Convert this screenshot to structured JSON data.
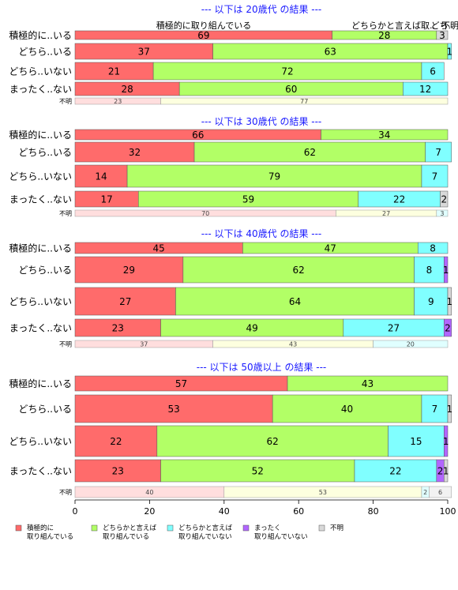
{
  "chart_data": {
    "type": "bar",
    "orientation": "horizontal",
    "stacked": true,
    "xlim": [
      0,
      100
    ],
    "x_ticks": [
      "0",
      "20",
      "40",
      "60",
      "80",
      "100"
    ],
    "categories": [
      "積極的に..いる",
      "どちら..いる",
      "どちら..いない",
      "まったく..ない",
      "不明"
    ],
    "legend": {
      "placement": "bottom",
      "items": [
        {
          "label": "積極的に\n取り組んでいる",
          "color": "#ff6b6b"
        },
        {
          "label": "どちらかと言えば\n取り組んでいる",
          "color": "#b2ff66"
        },
        {
          "label": "どちらかと言えば\n取り組んでいない",
          "color": "#80ffff"
        },
        {
          "label": "まったく\n取り組んでいない",
          "color": "#b266ff"
        },
        {
          "label": "不明",
          "color": "#d9d9d9"
        }
      ]
    },
    "faded_colors": [
      "#ffdede",
      "#fdffdf",
      "#e0ffff",
      "#efe0ff",
      "#f2f2f2"
    ],
    "top_header_labels": [
      "積極的に取り組んでいる",
      "どちらかと言えば取..",
      "どち..",
      "不明"
    ],
    "panels": [
      {
        "title": "--- 以下は 20歳代 の結果 ---",
        "rows": [
          {
            "category": "積極的に..いる",
            "values": [
              69,
              28,
              0,
              0,
              3
            ]
          },
          {
            "category": "どちら..いる",
            "values": [
              37,
              63,
              1,
              0,
              0
            ]
          },
          {
            "category": "どちら..いない",
            "values": [
              21,
              72,
              6,
              0,
              0
            ]
          },
          {
            "category": "まったく..ない",
            "values": [
              28,
              60,
              12,
              0,
              0
            ]
          },
          {
            "category": "不明",
            "values": [
              23,
              77,
              0,
              0,
              0
            ]
          }
        ]
      },
      {
        "title": "--- 以下は 30歳代 の結果 ---",
        "rows": [
          {
            "category": "積極的に..いる",
            "values": [
              66,
              34,
              0,
              0,
              0
            ]
          },
          {
            "category": "どちら..いる",
            "values": [
              32,
              62,
              7,
              0,
              0
            ]
          },
          {
            "category": "どちら..いない",
            "values": [
              14,
              79,
              7,
              0,
              0
            ]
          },
          {
            "category": "まったく..ない",
            "values": [
              17,
              59,
              22,
              0,
              2
            ]
          },
          {
            "category": "不明",
            "values": [
              70,
              27,
              3,
              0,
              0
            ]
          }
        ]
      },
      {
        "title": "--- 以下は 40歳代 の結果 ---",
        "rows": [
          {
            "category": "積極的に..いる",
            "values": [
              45,
              47,
              8,
              0,
              0
            ]
          },
          {
            "category": "どちら..いる",
            "values": [
              29,
              62,
              8,
              1,
              0
            ]
          },
          {
            "category": "どちら..いない",
            "values": [
              27,
              64,
              9,
              0,
              1
            ]
          },
          {
            "category": "まったく..ない",
            "values": [
              23,
              49,
              27,
              2,
              0
            ]
          },
          {
            "category": "不明",
            "values": [
              37,
              43,
              20,
              0,
              0
            ]
          }
        ]
      },
      {
        "title": "--- 以下は 50歳以上 の結果 ---",
        "rows": [
          {
            "category": "積極的に..いる",
            "values": [
              57,
              43,
              0,
              0,
              0
            ]
          },
          {
            "category": "どちら..いる",
            "values": [
              53,
              40,
              7,
              0,
              1
            ]
          },
          {
            "category": "どちら..いない",
            "values": [
              22,
              62,
              15,
              1,
              0
            ]
          },
          {
            "category": "まったく..ない",
            "values": [
              23,
              52,
              22,
              2,
              1
            ]
          },
          {
            "category": "不明",
            "values": [
              40,
              53,
              2,
              0,
              6
            ]
          }
        ]
      }
    ]
  }
}
